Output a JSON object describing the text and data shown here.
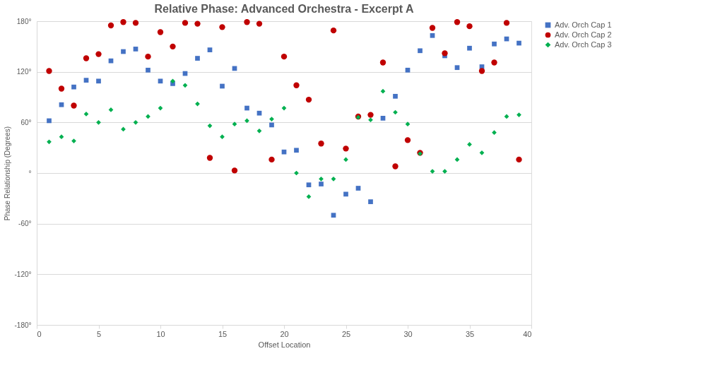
{
  "chart_data": {
    "type": "scatter",
    "title": "Relative Phase: Advanced Orchestra - Excerpt A",
    "xlabel": "Offset Location",
    "ylabel": "Phase Relationship (Degrees)",
    "x": [
      1,
      2,
      3,
      4,
      5,
      6,
      7,
      8,
      9,
      10,
      11,
      12,
      13,
      14,
      15,
      16,
      17,
      18,
      19,
      20,
      21,
      22,
      23,
      24,
      25,
      26,
      27,
      28,
      29,
      30,
      31,
      32,
      33,
      34,
      35,
      36,
      37,
      38,
      39
    ],
    "series": [
      {
        "name": "Adv. Orch Cap 1",
        "color": "#4472c4",
        "marker": "square",
        "values": [
          62,
          81,
          102,
          110,
          109,
          133,
          144,
          147,
          122,
          109,
          106,
          118,
          136,
          146,
          103,
          124,
          77,
          71,
          57,
          25,
          27,
          -14,
          -13,
          -50,
          -25,
          -18,
          -34,
          65,
          91,
          122,
          145,
          163,
          139,
          125,
          148,
          126,
          153,
          159,
          154
        ]
      },
      {
        "name": "Adv. Orch Cap 2",
        "color": "#c00000",
        "marker": "circle",
        "values": [
          121,
          100,
          80,
          136,
          141,
          175,
          179,
          178,
          138,
          167,
          150,
          178,
          177,
          18,
          173,
          3,
          179,
          177,
          16,
          138,
          104,
          87,
          35,
          169,
          29,
          67,
          69,
          131,
          8,
          39,
          24,
          172,
          142,
          179,
          174,
          121,
          131,
          178,
          16
        ]
      },
      {
        "name": "Adv. Orch Cap 3",
        "color": "#00b050",
        "marker": "diamond",
        "values": [
          37,
          43,
          38,
          70,
          60,
          75,
          52,
          60,
          67,
          77,
          109,
          104,
          82,
          56,
          43,
          58,
          62,
          50,
          64,
          77,
          0,
          -28,
          -7,
          -7,
          16,
          66,
          63,
          97,
          72,
          58,
          23,
          2,
          2,
          16,
          34,
          24,
          48,
          67,
          69
        ]
      }
    ],
    "xlim": [
      0,
      40
    ],
    "xticks": [
      0,
      5,
      10,
      15,
      20,
      25,
      30,
      35,
      40
    ],
    "ylim": [
      -180,
      180
    ],
    "yticks": [
      {
        "value": -180,
        "label": "-180°"
      },
      {
        "value": -120,
        "label": "-120°"
      },
      {
        "value": -60,
        "label": "-60°"
      },
      {
        "value": 0,
        "label": "°"
      },
      {
        "value": 60,
        "label": "60°"
      },
      {
        "value": 120,
        "label": "120°"
      },
      {
        "value": 180,
        "label": "180°"
      }
    ],
    "grid": "y",
    "legend": "right"
  }
}
